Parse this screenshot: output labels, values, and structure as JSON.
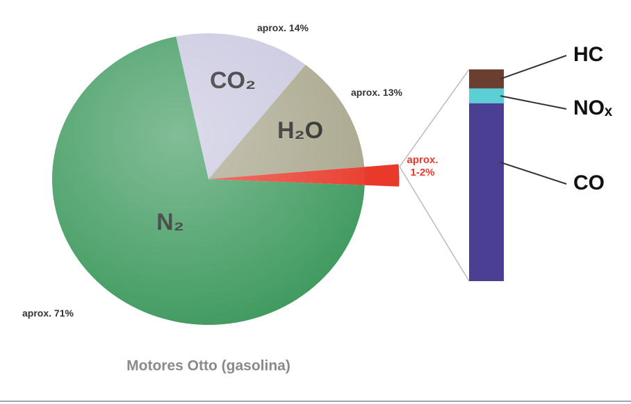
{
  "chart_data": [
    {
      "type": "pie",
      "title": "Motores Otto (gasolina)",
      "categories": [
        "CO₂",
        "H₂O",
        null,
        "N₂"
      ],
      "values": [
        14,
        13,
        2,
        71
      ],
      "value_labels": [
        "aprox. 14%",
        "aprox. 13%",
        "aprox. 1-2%",
        "aprox. 71%"
      ],
      "colors": [
        "#c9c7df",
        "#a9a68c",
        "#e8392a",
        "#3f9a5f"
      ]
    },
    {
      "type": "stacked_bar",
      "categories": [
        "HC",
        "NOₓ",
        "CO"
      ],
      "values": [
        9,
        7,
        84
      ],
      "colors": [
        "#6b3f2f",
        "#5cced6",
        "#4a3f93"
      ]
    }
  ]
}
